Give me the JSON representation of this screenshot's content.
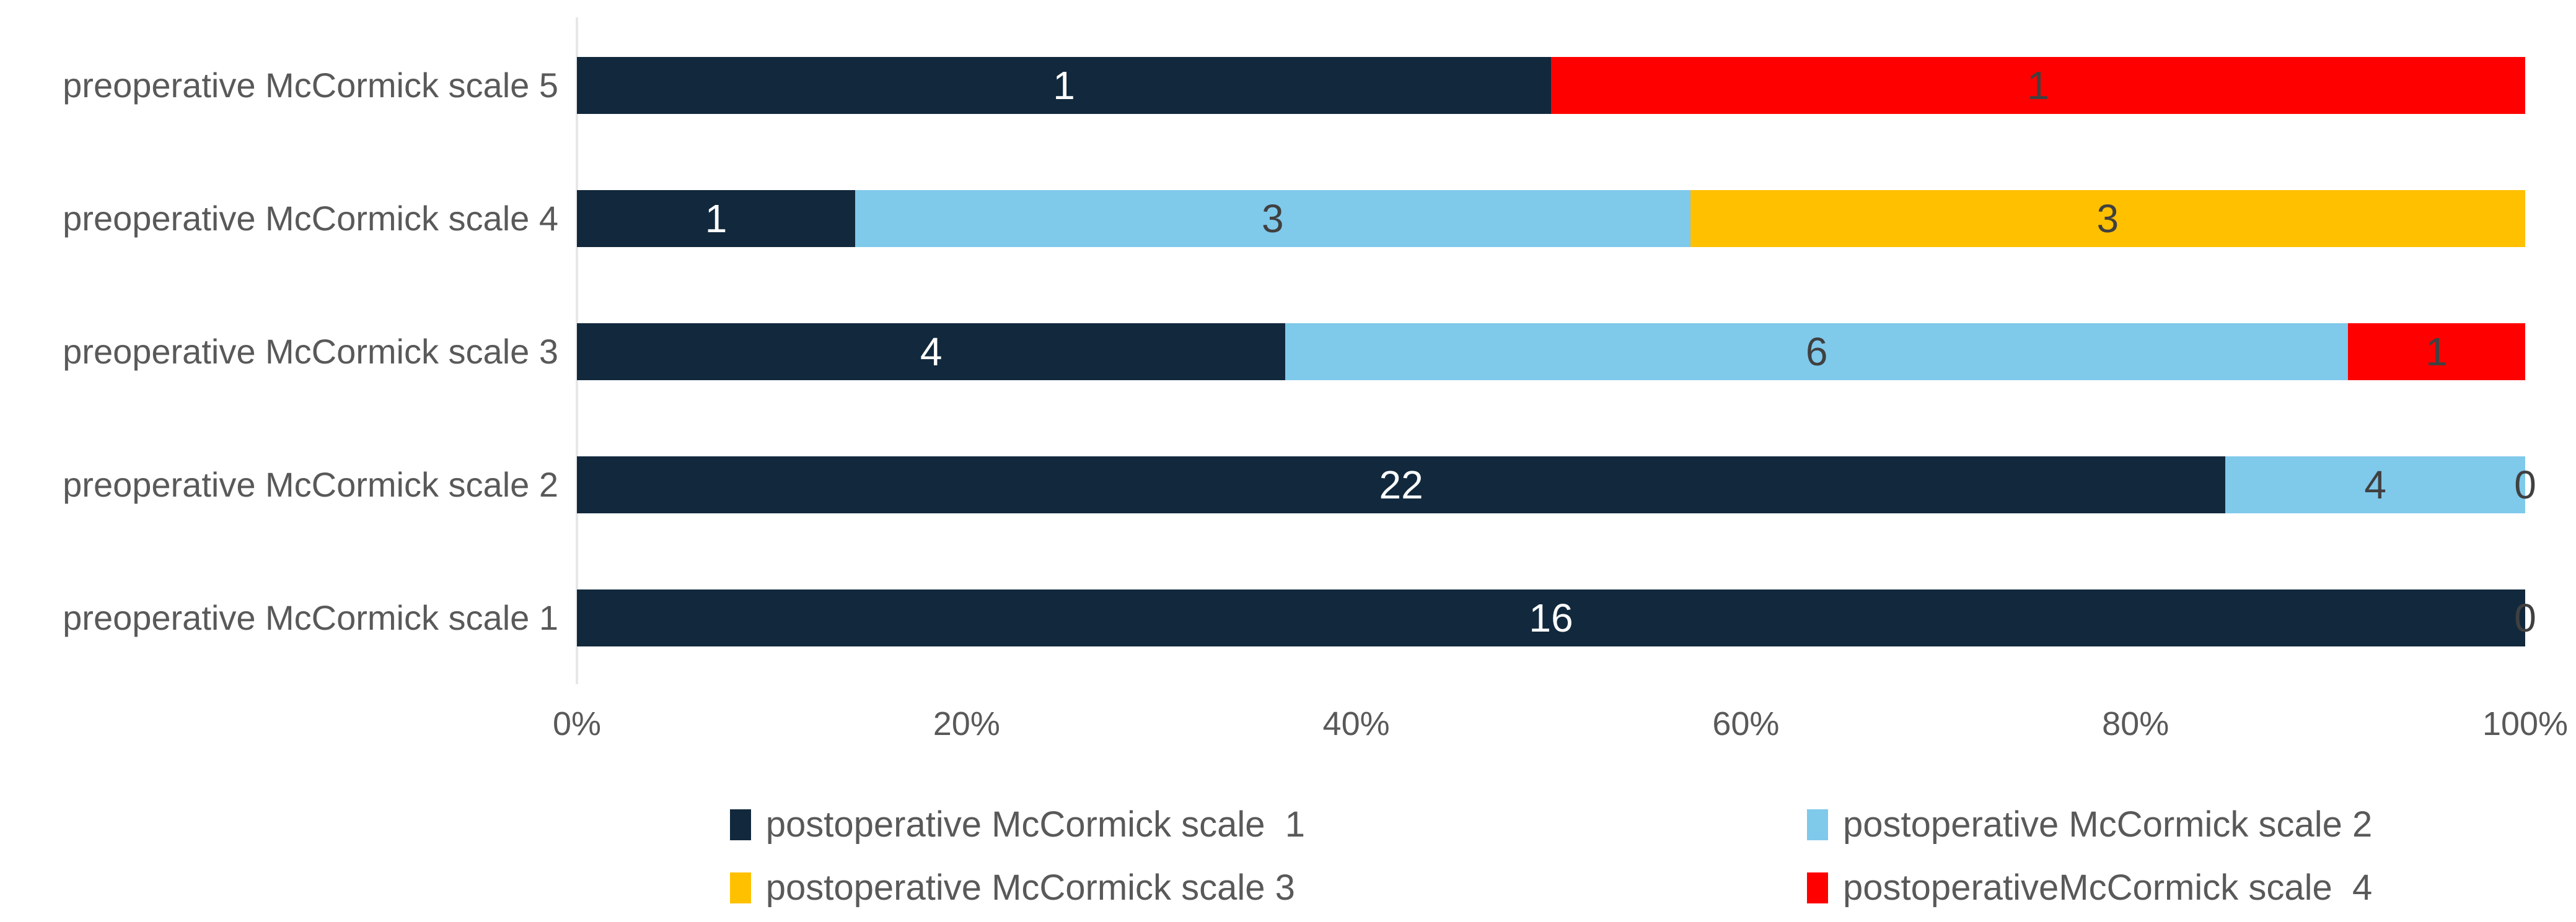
{
  "chart_data": {
    "type": "bar",
    "variant": "horizontal-100pct-stacked",
    "title": "",
    "xlabel": "",
    "ylabel": "",
    "grid": false,
    "x_axis": {
      "min": 0,
      "max": 100,
      "tick_labels": [
        "0%",
        "20%",
        "40%",
        "60%",
        "80%",
        "100%"
      ],
      "tick_color": "#595959"
    },
    "categories": [
      "preoperative McCormick scale 5",
      "preoperative McCormick scale 4",
      "preoperative McCormick scale 3",
      "preoperative McCormick scale 2",
      "preoperative McCormick scale 1"
    ],
    "series": [
      {
        "name": "postoperative McCormick scale  1",
        "color": "#12293D",
        "label_color": "#FFFFFF",
        "values": [
          1,
          1,
          4,
          22,
          16
        ]
      },
      {
        "name": "postoperative McCormick scale 2",
        "color": "#7FC9EB",
        "label_color": "#404040",
        "values": [
          0,
          3,
          6,
          4,
          0
        ]
      },
      {
        "name": "postoperative McCormick scale 3",
        "color": "#FFC000",
        "label_color": "#404040",
        "values": [
          0,
          3,
          0,
          0,
          0
        ]
      },
      {
        "name": "postoperativeMcCormick scale  4",
        "color": "#FF0000",
        "label_color": "#404040",
        "values": [
          1,
          0,
          1,
          0,
          0
        ]
      }
    ],
    "rows": [
      {
        "category": "preoperative McCormick scale 5",
        "segments": [
          {
            "value": 1,
            "show_label": true
          },
          {
            "value": 0,
            "show_label": false
          },
          {
            "value": 0,
            "show_label": false
          },
          {
            "value": 1,
            "show_label": true
          }
        ]
      },
      {
        "category": "preoperative McCormick scale 4",
        "segments": [
          {
            "value": 1,
            "show_label": true
          },
          {
            "value": 3,
            "show_label": true
          },
          {
            "value": 3,
            "show_label": true
          },
          {
            "value": 0,
            "show_label": false
          }
        ]
      },
      {
        "category": "preoperative McCormick scale 3",
        "segments": [
          {
            "value": 4,
            "show_label": true
          },
          {
            "value": 6,
            "show_label": true
          },
          {
            "value": 0,
            "show_label": false
          },
          {
            "value": 1,
            "show_label": true
          }
        ]
      },
      {
        "category": "preoperative McCormick scale 2",
        "segments": [
          {
            "value": 22,
            "show_label": true
          },
          {
            "value": 4,
            "show_label": true
          },
          {
            "value": 0,
            "show_label": false
          },
          {
            "value": 0,
            "show_label": true
          }
        ]
      },
      {
        "category": "preoperative McCormick scale 1",
        "segments": [
          {
            "value": 16,
            "show_label": true
          },
          {
            "value": 0,
            "show_label": false
          },
          {
            "value": 0,
            "show_label": false
          },
          {
            "value": 0,
            "show_label": true
          }
        ]
      }
    ],
    "legend": {
      "position": "bottom",
      "columns": 2,
      "entries": [
        {
          "label": "postoperative McCormick scale  1",
          "color": "#12293D"
        },
        {
          "label": "postoperative McCormick scale 2",
          "color": "#7FC9EB"
        },
        {
          "label": "postoperative McCormick scale 3",
          "color": "#FFC000"
        },
        {
          "label": "postoperativeMcCormick scale  4",
          "color": "#FF0000"
        }
      ]
    },
    "colors": {
      "axis_line": "#E7E7E7",
      "category_label_text": "#595959",
      "tick_text": "#595959",
      "legend_text": "#595959",
      "data_label_on_dark": "#FFFFFF",
      "data_label_on_light": "#404040",
      "background": "#FFFFFF"
    }
  }
}
